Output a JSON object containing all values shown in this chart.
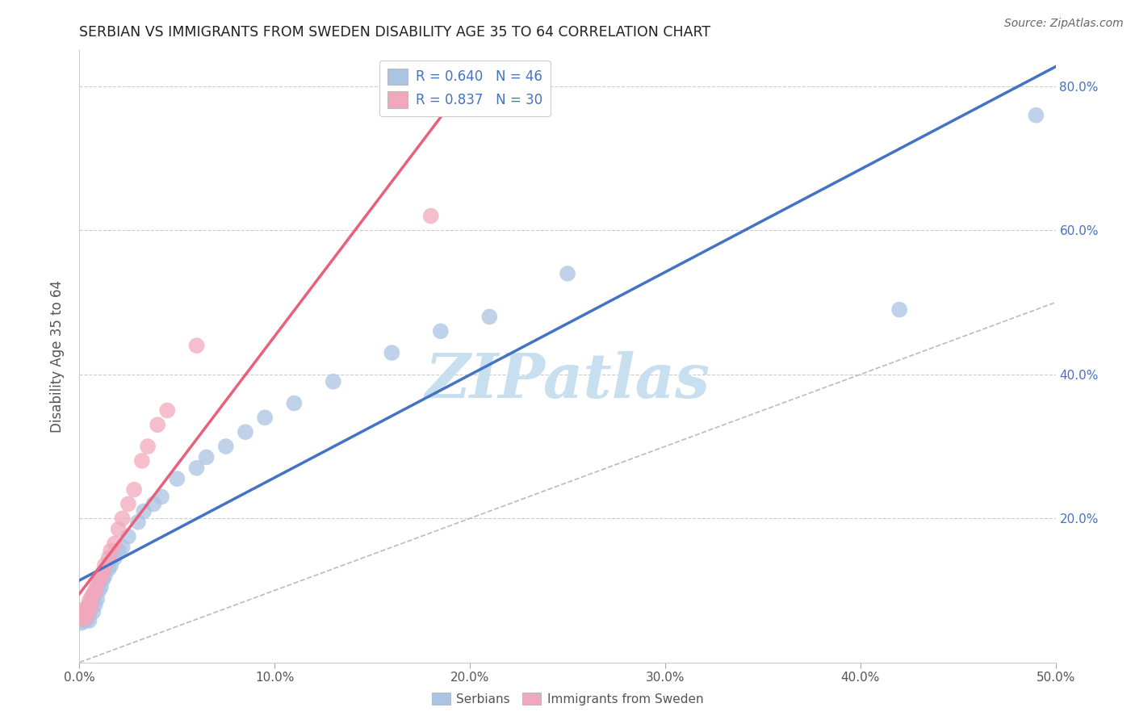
{
  "title": "SERBIAN VS IMMIGRANTS FROM SWEDEN DISABILITY AGE 35 TO 64 CORRELATION CHART",
  "source": "Source: ZipAtlas.com",
  "ylabel": "Disability Age 35 to 64",
  "xlim": [
    0.0,
    0.5
  ],
  "ylim": [
    0.0,
    0.85
  ],
  "xticks": [
    0.0,
    0.1,
    0.2,
    0.3,
    0.4,
    0.5
  ],
  "yticks": [
    0.0,
    0.2,
    0.4,
    0.6,
    0.8
  ],
  "xticklabels": [
    "0.0%",
    "10.0%",
    "20.0%",
    "30.0%",
    "40.0%",
    "50.0%"
  ],
  "yticklabels": [
    "",
    "20.0%",
    "40.0%",
    "60.0%",
    "80.0%"
  ],
  "serbian_R": 0.64,
  "serbian_N": 46,
  "sweden_R": 0.837,
  "sweden_N": 30,
  "serbian_color": "#aac4e3",
  "sweden_color": "#f2a8bc",
  "serbian_line_color": "#4472c4",
  "sweden_line_color": "#e8607a",
  "diagonal_color": "#bbbbbb",
  "serbian_x": [
    0.001,
    0.002,
    0.002,
    0.003,
    0.003,
    0.004,
    0.004,
    0.005,
    0.005,
    0.005,
    0.006,
    0.006,
    0.007,
    0.007,
    0.008,
    0.008,
    0.009,
    0.01,
    0.01,
    0.011,
    0.012,
    0.013,
    0.015,
    0.016,
    0.018,
    0.02,
    0.022,
    0.025,
    0.03,
    0.033,
    0.038,
    0.042,
    0.05,
    0.06,
    0.065,
    0.075,
    0.085,
    0.095,
    0.11,
    0.13,
    0.16,
    0.185,
    0.21,
    0.25,
    0.42,
    0.49
  ],
  "serbian_y": [
    0.055,
    0.06,
    0.065,
    0.058,
    0.07,
    0.062,
    0.075,
    0.058,
    0.068,
    0.08,
    0.075,
    0.085,
    0.07,
    0.09,
    0.08,
    0.095,
    0.088,
    0.1,
    0.11,
    0.105,
    0.115,
    0.12,
    0.13,
    0.135,
    0.145,
    0.155,
    0.16,
    0.175,
    0.195,
    0.21,
    0.22,
    0.23,
    0.255,
    0.27,
    0.285,
    0.3,
    0.32,
    0.34,
    0.36,
    0.39,
    0.43,
    0.46,
    0.48,
    0.54,
    0.49,
    0.76
  ],
  "sweden_x": [
    0.001,
    0.002,
    0.002,
    0.003,
    0.003,
    0.004,
    0.005,
    0.005,
    0.006,
    0.006,
    0.007,
    0.008,
    0.009,
    0.01,
    0.011,
    0.012,
    0.013,
    0.015,
    0.016,
    0.018,
    0.02,
    0.022,
    0.025,
    0.028,
    0.032,
    0.035,
    0.04,
    0.045,
    0.06,
    0.18
  ],
  "sweden_y": [
    0.06,
    0.065,
    0.07,
    0.062,
    0.075,
    0.068,
    0.075,
    0.085,
    0.08,
    0.09,
    0.095,
    0.1,
    0.11,
    0.115,
    0.12,
    0.125,
    0.135,
    0.145,
    0.155,
    0.165,
    0.185,
    0.2,
    0.22,
    0.24,
    0.28,
    0.3,
    0.33,
    0.35,
    0.44,
    0.62
  ],
  "background_color": "#ffffff",
  "grid_color": "#cccccc",
  "watermark_text": "ZIPatlas",
  "watermark_color": "#c8dff0"
}
